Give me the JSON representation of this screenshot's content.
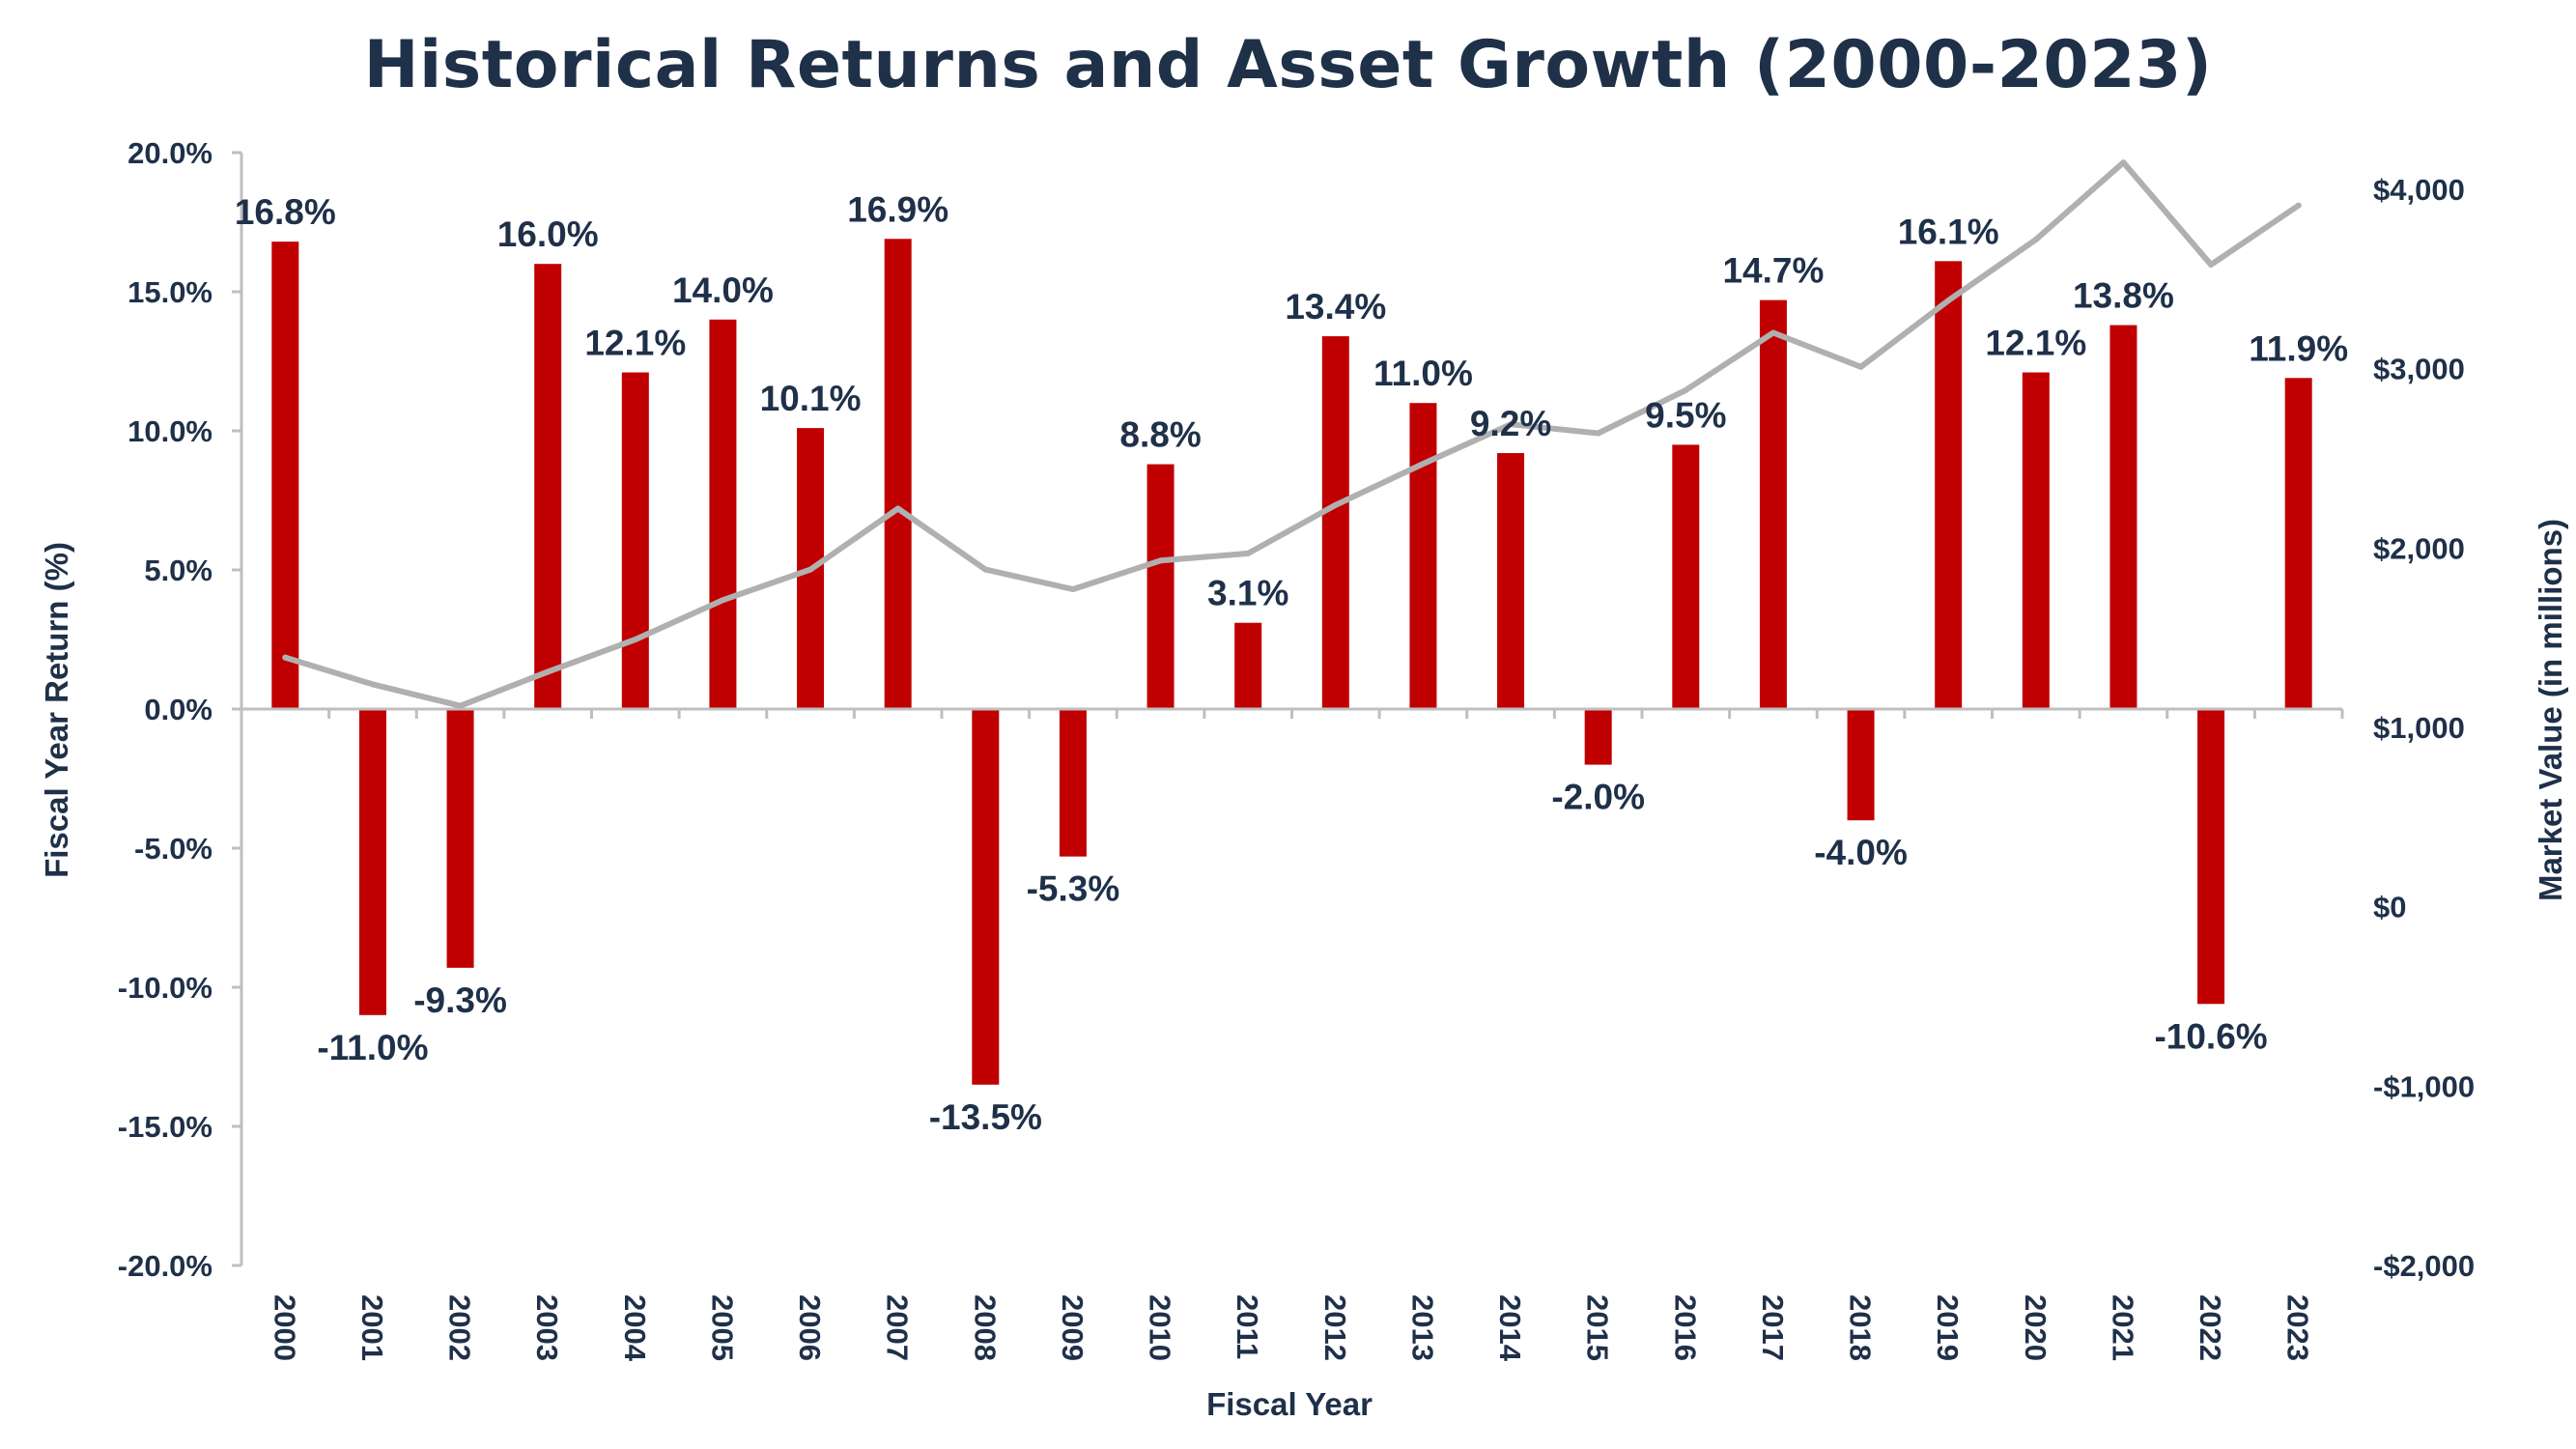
{
  "chart_data": {
    "type": "bar",
    "title": "Historical Returns and Asset Growth (2000-2023)",
    "xlabel": "Fiscal Year",
    "ylabel": "Fiscal Year Return (%)",
    "y2label": "Market Value (in millions)",
    "categories": [
      "2000",
      "2001",
      "2002",
      "2003",
      "2004",
      "2005",
      "2006",
      "2007",
      "2008",
      "2009",
      "2010",
      "2011",
      "2012",
      "2013",
      "2014",
      "2015",
      "2016",
      "2017",
      "2018",
      "2019",
      "2020",
      "2021",
      "2022",
      "2023"
    ],
    "series": [
      {
        "type": "bar",
        "axis": "left",
        "values": [
          16.8,
          -11.0,
          -9.3,
          16.0,
          12.1,
          14.0,
          10.1,
          16.9,
          -13.5,
          -5.3,
          8.8,
          3.1,
          13.4,
          11.0,
          9.2,
          -2.0,
          9.5,
          14.7,
          -4.0,
          16.1,
          12.1,
          13.8,
          -10.6,
          11.9
        ],
        "labels": [
          "16.8%",
          "-11.0%",
          "-9.3%",
          "16.0%",
          "12.1%",
          "14.0%",
          "10.1%",
          "16.9%",
          "-13.5%",
          "-5.3%",
          "8.8%",
          "3.1%",
          "13.4%",
          "11.0%",
          "9.2%",
          "-2.0%",
          "9.5%",
          "14.7%",
          "-4.0%",
          "16.1%",
          "12.1%",
          "13.8%",
          "-10.6%",
          "11.9%"
        ],
        "color": "#c00000"
      },
      {
        "type": "line",
        "axis": "right",
        "values": [
          1390,
          1240,
          1120,
          1310,
          1490,
          1710,
          1880,
          2220,
          1880,
          1770,
          1930,
          1970,
          2240,
          2470,
          2690,
          2640,
          2880,
          3200,
          3010,
          3380,
          3720,
          4150,
          3580,
          3910
        ],
        "color": "#b0b0b0"
      }
    ],
    "ylim": [
      -20,
      20
    ],
    "y_ticks": [
      -20,
      -15,
      -10,
      -5,
      0,
      5,
      10,
      15,
      20
    ],
    "y_tick_labels": [
      "-20.0%",
      "-15.0%",
      "-10.0%",
      "-5.0%",
      "0.0%",
      "5.0%",
      "10.0%",
      "15.0%",
      "20.0%"
    ],
    "y2lim": [
      -2000,
      4000
    ],
    "y2_ticks": [
      -2000,
      -1000,
      0,
      1000,
      2000,
      3000,
      4000
    ],
    "y2_tick_labels": [
      "-$2,000",
      "-$1,000",
      "$0",
      "$1,000",
      "$2,000",
      "$3,000",
      "$4,000"
    ],
    "grid": false,
    "legend": "none",
    "colors": {
      "bar": "#c00000",
      "line": "#b0b0b0",
      "text": "#1f3049",
      "axis": "#bfbfbf"
    }
  }
}
